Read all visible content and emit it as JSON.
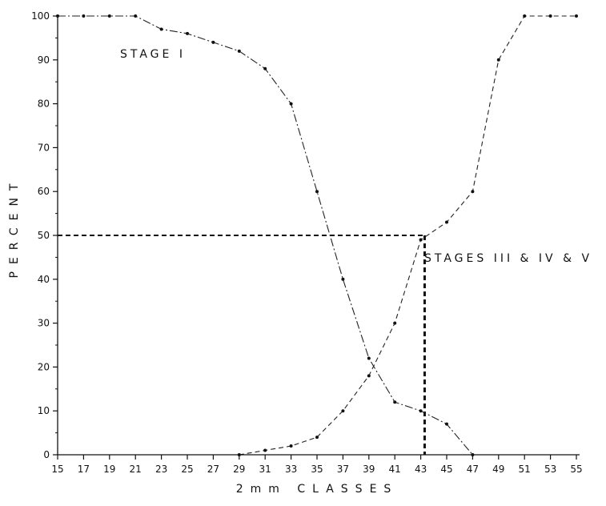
{
  "chart_data": {
    "type": "line",
    "title": "",
    "xlabel": "2mm CLASSES",
    "ylabel": "PERCENT",
    "xlim": [
      15,
      55
    ],
    "ylim": [
      0,
      100
    ],
    "x_ticks": [
      15,
      17,
      19,
      21,
      23,
      25,
      27,
      29,
      31,
      33,
      35,
      37,
      39,
      41,
      43,
      45,
      47,
      49,
      51,
      53,
      55
    ],
    "y_ticks": [
      0,
      10,
      20,
      30,
      40,
      50,
      60,
      70,
      80,
      90,
      100
    ],
    "grid": false,
    "legend": "none",
    "series": [
      {
        "name": "STAGE I",
        "x": [
          15,
          17,
          19,
          21,
          23,
          25,
          27,
          29,
          31,
          33,
          35,
          37,
          39,
          41,
          43,
          45,
          47
        ],
        "y": [
          100,
          100,
          100,
          100,
          97,
          96,
          94,
          92,
          88,
          80,
          60,
          40,
          22,
          12,
          10,
          7,
          0
        ]
      },
      {
        "name": "STAGES III & IV & V",
        "x": [
          29,
          31,
          33,
          35,
          37,
          39,
          41,
          43,
          45,
          47,
          49,
          51,
          53,
          55
        ],
        "y": [
          0,
          1,
          2,
          4,
          10,
          18,
          30,
          49,
          53,
          60,
          90,
          100,
          100,
          100
        ]
      }
    ],
    "reference_line": {
      "y": 50,
      "x": 43.3
    },
    "annotations": [
      "STAGE I",
      "STAGES III & IV & V"
    ]
  }
}
